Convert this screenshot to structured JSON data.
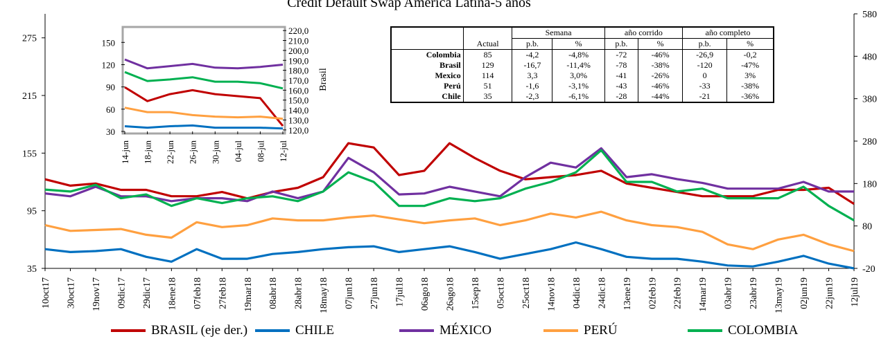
{
  "chart_data": [
    {
      "type": "line",
      "title": "Credit Default Swap América Latina-5 años",
      "categories": [
        "10oct17",
        "30oct17",
        "19nov17",
        "09dic17",
        "29dic17",
        "18ene18",
        "07feb18",
        "27feb18",
        "19mar18",
        "08abr18",
        "28abr18",
        "18may18",
        "07jun18",
        "27jun18",
        "17jul18",
        "06ago18",
        "26ago18",
        "15sep18",
        "05oct18",
        "25oct18",
        "14nov18",
        "04dic18",
        "24dic18",
        "13ene19",
        "02feb19",
        "22feb19",
        "14mar19",
        "03abr19",
        "23abr19",
        "13may19",
        "02jun19",
        "22jun19",
        "12jul19"
      ],
      "series": [
        {
          "name": "BRASIL (eje der.)",
          "color": "#c00000",
          "axis": "y2",
          "values": [
            190,
            175,
            180,
            165,
            165,
            150,
            150,
            160,
            145,
            160,
            170,
            195,
            275,
            265,
            200,
            210,
            275,
            240,
            210,
            190,
            195,
            200,
            210,
            180,
            170,
            160,
            150,
            150,
            150,
            165,
            165,
            170,
            132
          ]
        },
        {
          "name": "CHILE",
          "color": "#0070c0",
          "values": [
            55,
            52,
            53,
            55,
            47,
            42,
            55,
            45,
            45,
            50,
            52,
            55,
            57,
            58,
            52,
            55,
            58,
            52,
            45,
            50,
            55,
            62,
            55,
            47,
            45,
            45,
            42,
            38,
            37,
            42,
            48,
            40,
            35
          ]
        },
        {
          "name": "MÉXICO",
          "color": "#7030a0",
          "values": [
            113,
            110,
            120,
            110,
            110,
            105,
            108,
            108,
            105,
            115,
            108,
            115,
            150,
            135,
            112,
            113,
            120,
            115,
            110,
            130,
            145,
            140,
            160,
            130,
            133,
            128,
            124,
            118,
            118,
            118,
            125,
            115,
            115
          ]
        },
        {
          "name": "PERÚ",
          "color": "#ffa040",
          "values": [
            80,
            74,
            75,
            76,
            70,
            67,
            83,
            78,
            80,
            87,
            85,
            85,
            88,
            90,
            86,
            82,
            85,
            87,
            80,
            85,
            92,
            88,
            94,
            85,
            80,
            78,
            73,
            60,
            55,
            65,
            70,
            60,
            53
          ]
        },
        {
          "name": "COLOMBIA",
          "color": "#00b050",
          "values": [
            117,
            115,
            122,
            108,
            112,
            100,
            108,
            103,
            108,
            110,
            105,
            115,
            135,
            125,
            100,
            100,
            108,
            105,
            108,
            118,
            125,
            135,
            158,
            125,
            125,
            115,
            118,
            108,
            108,
            108,
            120,
            100,
            85
          ]
        }
      ],
      "ylim": [
        35,
        300
      ],
      "yticks": [
        35,
        95,
        155,
        215,
        275
      ],
      "y2lim": [
        -20,
        580
      ],
      "y2ticks": [
        -20,
        80,
        180,
        280,
        380,
        480,
        580
      ],
      "legend": "bottom"
    },
    {
      "type": "line",
      "y2_label": "Brasil",
      "categories": [
        "14-jun",
        "18-jun",
        "22-jun",
        "26-jun",
        "30-jun",
        "04-jul",
        "08-jul",
        "12-jul"
      ],
      "series": [
        {
          "color": "#c00000",
          "axis": "y2",
          "values": [
            163,
            149,
            156,
            160,
            156,
            154,
            152,
            124
          ]
        },
        {
          "color": "#0070c0",
          "values": [
            37,
            35,
            37,
            38,
            35,
            35,
            35,
            34
          ]
        },
        {
          "color": "#7030a0",
          "values": [
            127,
            115,
            118,
            121,
            116,
            115,
            117,
            120
          ]
        },
        {
          "color": "#ffa040",
          "values": [
            62,
            56,
            56,
            52,
            50,
            49,
            50,
            47
          ]
        },
        {
          "color": "#00b050",
          "values": [
            110,
            98,
            100,
            103,
            97,
            97,
            95,
            88
          ]
        }
      ],
      "ylim": [
        30,
        168
      ],
      "yticks": [
        30,
        60,
        90,
        120,
        150
      ],
      "y2lim": [
        118.5,
        221.5
      ],
      "y2ticks": [
        {
          "value": 120,
          "label": "120,0"
        },
        {
          "value": 130,
          "label": "130,0"
        },
        {
          "value": 140,
          "label": "140,0"
        },
        {
          "value": 150,
          "label": "150,0"
        },
        {
          "value": 160,
          "label": "160,0"
        },
        {
          "value": 170,
          "label": "170,0"
        },
        {
          "value": 180,
          "label": "180,0"
        },
        {
          "value": 190,
          "label": "190,0"
        },
        {
          "value": 200,
          "label": "200,0"
        },
        {
          "value": 210,
          "label": "210,0"
        },
        {
          "value": 220,
          "label": "220,0"
        }
      ]
    }
  ],
  "table": {
    "group_headers": [
      "Semana",
      "año corrido",
      "año completo"
    ],
    "columns": [
      "Actual",
      "p.b.",
      "%",
      "p.b.",
      "%",
      "p.b.",
      "%"
    ],
    "rows": [
      [
        "Colombia",
        "85",
        "-4,2",
        "-4,8%",
        "-72",
        "-46%",
        "-26,9",
        "-0,2"
      ],
      [
        "Brasil",
        "129",
        "-16,7",
        "-11,4%",
        "-78",
        "-38%",
        "-120",
        "-47%"
      ],
      [
        "Mexico",
        "114",
        "3,3",
        "3,0%",
        "-41",
        "-26%",
        "0",
        "3%"
      ],
      [
        "Perú",
        "51",
        "-1,6",
        "-3,1%",
        "-43",
        "-46%",
        "-33",
        "-38%"
      ],
      [
        "Chile",
        "35",
        "-2,3",
        "-6,1%",
        "-28",
        "-44%",
        "-21",
        "-36%"
      ]
    ]
  }
}
